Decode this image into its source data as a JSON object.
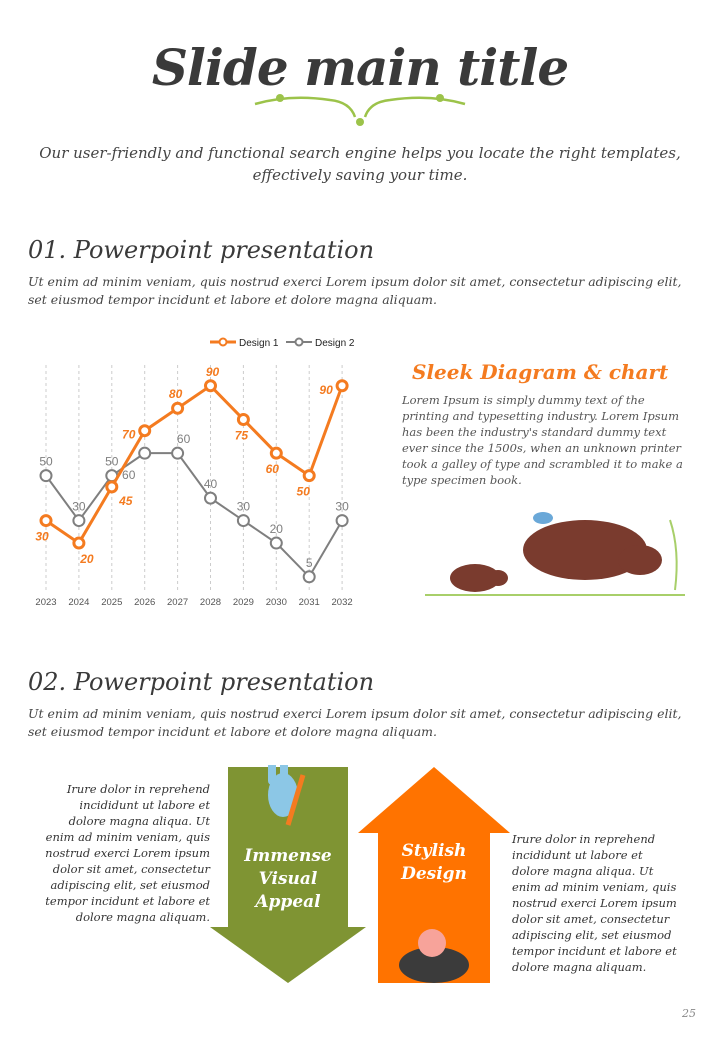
{
  "title": "Slide main title",
  "subtitle": "Our user-friendly and functional search engine helps you locate the right templates, effectively saving your time.",
  "section1": {
    "heading": "01. Powerpoint presentation",
    "text": "Ut enim ad minim veniam, quis nostrud exerci  Lorem ipsum dolor sit amet, consectetur adipiscing elit, set eiusmod tempor incidunt et labore et dolore magna aliquam."
  },
  "sleek": {
    "title": "Sleek Diagram & chart",
    "text": "Lorem Ipsum is simply dummy text of the printing and typesetting industry. Lorem Ipsum has been the industry's standard dummy text ever since the 1500s, when an unknown printer took a galley of type and scrambled it to make a type specimen book."
  },
  "section2": {
    "heading": "02. Powerpoint presentation",
    "text": "Ut enim ad minim veniam, quis nostrud exerci  Lorem ipsum dolor sit amet, consectetur adipiscing elit, set eiusmod tempor incidunt et labore et dolore magna aliquam.",
    "left_text": "Irure dolor in reprehend incididunt ut labore et dolore magna aliqua. Ut enim ad minim veniam, quis nostrud exerci  Lorem ipsum dolor sit amet, consectetur adipiscing elit, set eiusmod tempor incidunt et labore et dolore magna aliquam.",
    "right_text": "Irure dolor in reprehend incididunt ut labore et dolore magna aliqua. Ut enim ad minim veniam, quis nostrud exerci  Lorem ipsum dolor sit amet, consectetur adipiscing elit, set eiusmod tempor incidunt et labore et dolore magna aliquam.",
    "down_arrow_label": "Immense Visual Appeal",
    "up_arrow_label": "Stylish Design"
  },
  "page_number": "25",
  "colors": {
    "orange": "#f47b20",
    "gray": "#7f7f7f",
    "green": "#7f9433"
  },
  "chart_data": {
    "type": "line",
    "categories": [
      "2023",
      "2024",
      "2025",
      "2026",
      "2027",
      "2028",
      "2029",
      "2030",
      "2031",
      "2032"
    ],
    "series": [
      {
        "name": "Design 1",
        "color": "#f47b20",
        "values": [
          30,
          20,
          45,
          70,
          80,
          90,
          75,
          60,
          50,
          90
        ]
      },
      {
        "name": "Design 2",
        "color": "#7f7f7f",
        "values": [
          50,
          30,
          50,
          60,
          60,
          40,
          30,
          20,
          5,
          30
        ]
      }
    ],
    "legend": "top-right",
    "grid": "vertical dashed",
    "ylim": [
      0,
      100
    ]
  }
}
